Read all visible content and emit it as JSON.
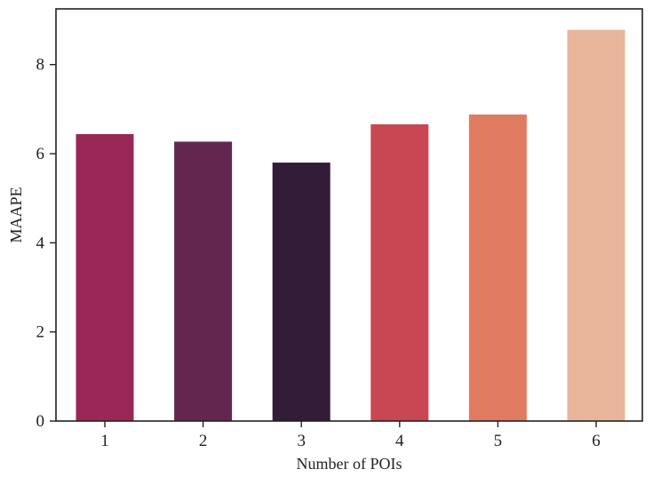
{
  "chart_data": {
    "type": "bar",
    "title": "",
    "xlabel": "Number of POIs",
    "ylabel": "MAAPE",
    "categories": [
      "1",
      "2",
      "3",
      "4",
      "5",
      "6"
    ],
    "values": [
      6.44,
      6.27,
      5.8,
      6.66,
      6.88,
      8.78
    ],
    "bar_colors": [
      "#9b2757",
      "#63264f",
      "#321c37",
      "#c94653",
      "#e07b62",
      "#e9b59b"
    ],
    "ylim": [
      0,
      9.25
    ],
    "yticks": [
      0,
      2,
      4,
      6,
      8
    ],
    "grid": false,
    "legend": "none"
  }
}
